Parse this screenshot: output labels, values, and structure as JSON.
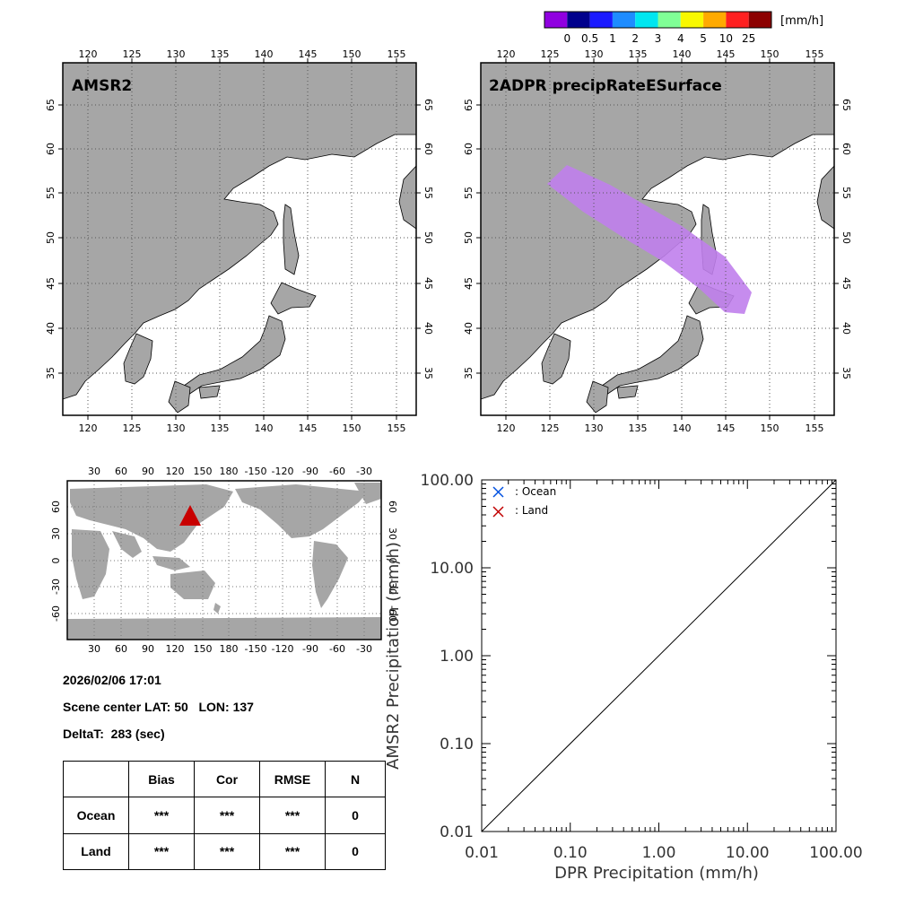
{
  "colorbar": {
    "unit": "[mm/h]",
    "colors": [
      "#9000e0",
      "#00008c",
      "#1a1aff",
      "#1e8cff",
      "#00e6f0",
      "#80ff96",
      "#f8f800",
      "#ffaa00",
      "#ff2020",
      "#8c0000"
    ],
    "labels": [
      "0",
      "0.5",
      "1",
      "2",
      "3",
      "4",
      "5",
      "10",
      "25"
    ]
  },
  "maps": {
    "lon_ticks": [
      "120",
      "125",
      "130",
      "135",
      "140",
      "145",
      "150",
      "155"
    ],
    "lat_ticks": [
      "65",
      "60",
      "55",
      "50",
      "45",
      "40",
      "35"
    ],
    "left_title": "AMSR2",
    "right_title": "2ADPR precipRateESurface",
    "land_color": "#a6a6a6",
    "swath_color": "#c080ec"
  },
  "globe": {
    "lon_ticks": [
      "30",
      "60",
      "90",
      "120",
      "150",
      "180",
      "-150",
      "-120",
      "-90",
      "-60",
      "-30"
    ],
    "lat_ticks": [
      "60",
      "30",
      "0",
      "-30",
      "-60"
    ],
    "marker_color": "#c80000"
  },
  "info": {
    "datetime": "2026/02/06 17:01",
    "scene_center": "Scene center LAT: 50   LON: 137",
    "deltat": "DeltaT:  283 (sec)"
  },
  "stats": {
    "headers": [
      "",
      "Bias",
      "Cor",
      "RMSE",
      "N"
    ],
    "rows": [
      [
        "Ocean",
        "***",
        "***",
        "***",
        "0"
      ],
      [
        "Land",
        "***",
        "***",
        "***",
        "0"
      ]
    ]
  },
  "chart_data": {
    "type": "scatter",
    "xlabel": "DPR Precipitation (mm/h)",
    "ylabel": "AMSR2 Precipitation (mm/h)",
    "xscale": "log",
    "yscale": "log",
    "xlim": [
      0.01,
      100
    ],
    "ylim": [
      0.01,
      100
    ],
    "x_tick_labels": [
      "0.01",
      "0.10",
      "1.00",
      "10.00",
      "100.00"
    ],
    "y_tick_labels": [
      "100.00",
      "10.00",
      "1.00",
      "0.10",
      "0.01"
    ],
    "series": [
      {
        "name": ": Ocean",
        "color": "#0050e0",
        "marker": "x",
        "points": []
      },
      {
        "name": ": Land",
        "color": "#c00000",
        "marker": "x",
        "points": []
      }
    ],
    "reference_line": "y = x",
    "legend": "top-left"
  }
}
